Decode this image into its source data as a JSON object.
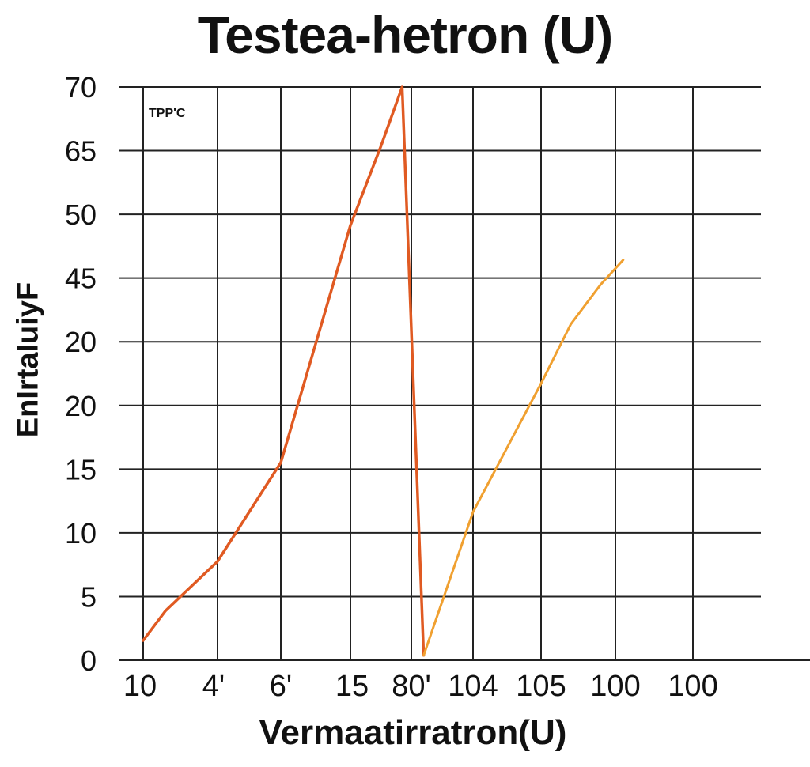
{
  "chart_data": {
    "type": "line",
    "title": "Testea-hetron (U)",
    "xlabel": "Vermaatirratron(U)",
    "ylabel": "EnIrtaIuiyF",
    "annotation": "TPP'C",
    "x_ticks": [
      "10",
      "4'",
      "6'",
      "15",
      "80'",
      "104",
      "105",
      "100",
      "100"
    ],
    "y_ticks": [
      "0",
      "5",
      "10",
      "15",
      "20",
      "20",
      "45",
      "50",
      "65",
      "70"
    ],
    "grid": true,
    "series": [
      {
        "color": "#e05a22",
        "points": [
          [
            0,
            2
          ],
          [
            0.3,
            5
          ],
          [
            1,
            10
          ],
          [
            2,
            20
          ],
          [
            3,
            44
          ],
          [
            3.5,
            52
          ],
          [
            3.85,
            58
          ],
          [
            4.2,
            0.5
          ]
        ]
      },
      {
        "color": "#f0a030",
        "points": [
          [
            4.2,
            0.5
          ],
          [
            5,
            15
          ],
          [
            6,
            28
          ],
          [
            6.4,
            34
          ],
          [
            6.8,
            38
          ],
          [
            7.1,
            40.5
          ]
        ]
      }
    ]
  }
}
